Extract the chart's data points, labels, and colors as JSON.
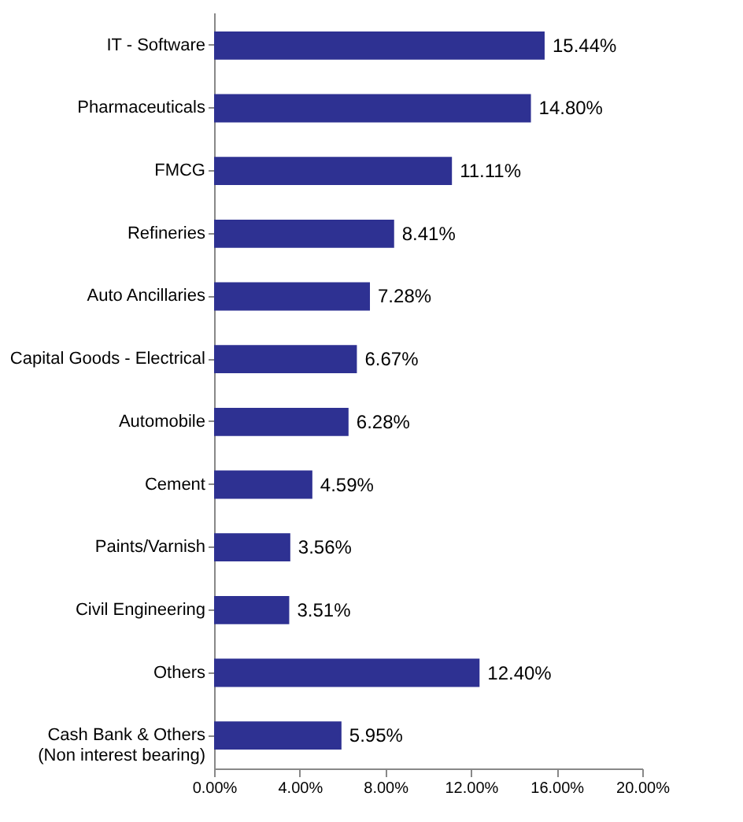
{
  "chart_data": {
    "type": "bar",
    "orientation": "horizontal",
    "categories": [
      "IT - Software",
      "Pharmaceuticals",
      "FMCG",
      "Refineries",
      "Auto Ancillaries",
      "Capital Goods - Electrical",
      "Automobile",
      "Cement",
      "Paints/Varnish",
      "Civil Engineering",
      "Others",
      "Cash Bank & Others\n(Non interest bearing)"
    ],
    "values": [
      15.44,
      14.8,
      11.11,
      8.41,
      7.28,
      6.67,
      6.28,
      4.59,
      3.56,
      3.51,
      12.4,
      5.95
    ],
    "value_labels": [
      "15.44%",
      "14.80%",
      "11.11%",
      "8.41%",
      "7.28%",
      "6.67%",
      "6.28%",
      "4.59%",
      "3.56%",
      "3.51%",
      "12.40%",
      "5.95%"
    ],
    "color": "#2e3192",
    "xlim": [
      0,
      20
    ],
    "xticks": [
      {
        "value": 0,
        "label": "0.00%"
      },
      {
        "value": 4,
        "label": "4.00%"
      },
      {
        "value": 8,
        "label": "8.00%"
      },
      {
        "value": 12,
        "label": "12.00%"
      },
      {
        "value": 16,
        "label": "16.00%"
      },
      {
        "value": 20,
        "label": "20.00%"
      }
    ],
    "grid": false
  }
}
